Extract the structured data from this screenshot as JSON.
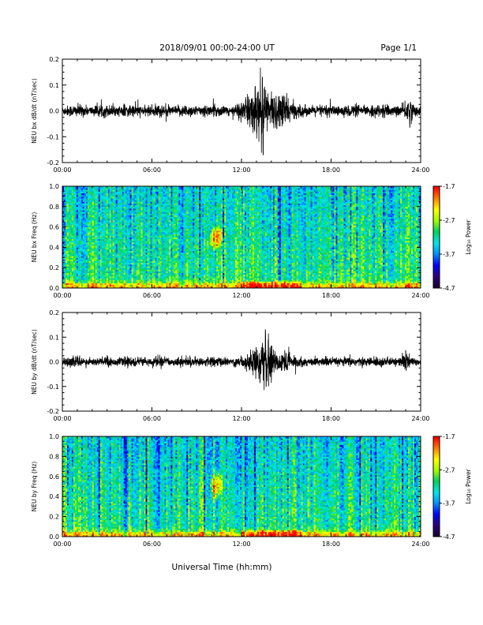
{
  "page": {
    "header": "2018/09/01  00:00-24:00 UT",
    "page_number": "Page 1/1",
    "xlabel": "Universal Time (hh:mm)"
  },
  "colors": {
    "trace": "#000000",
    "colormap": [
      "#1a0030",
      "#2a007a",
      "#0000ff",
      "#0090ff",
      "#00e8e8",
      "#00d060",
      "#a0ff00",
      "#ffff00",
      "#ff8000",
      "#ff0000"
    ]
  },
  "chart_data": [
    {
      "type": "line",
      "ylabel": "NEU bx dB/dt (nT/sec)",
      "x_ticks": [
        "00:00",
        "06:00",
        "12:00",
        "18:00",
        "24:00"
      ],
      "xlim": [
        0,
        24
      ],
      "ylim": [
        -0.2,
        0.2
      ],
      "y_ticks": [
        "-0.2",
        "-0.1",
        "0.0",
        "0.1",
        "0.2"
      ],
      "background_amplitude": 0.018,
      "bursts": [
        {
          "center": 13.3,
          "width": 1.0,
          "amp": 0.075
        },
        {
          "center": 14.8,
          "width": 0.45,
          "amp": 0.04
        },
        {
          "center": 23.2,
          "width": 0.2,
          "amp": 0.035
        }
      ],
      "extremes": {
        "max": 0.13,
        "min": -0.17,
        "at_hour": 13.4
      }
    },
    {
      "type": "heatmap",
      "ylabel": "NEU bx Freq (Hz)",
      "x_ticks": [
        "00:00",
        "06:00",
        "12:00",
        "18:00",
        "24:00"
      ],
      "xlim": [
        0,
        24
      ],
      "ylim": [
        0,
        1.0
      ],
      "y_ticks": [
        "0.0",
        "0.2",
        "0.4",
        "0.6",
        "0.8",
        "1.0"
      ],
      "colorbar": {
        "label": "Log₁₀ Power",
        "ticks": [
          "-1.7",
          "-2.7",
          "-3.7",
          "-4.7"
        ],
        "range": [
          -4.7,
          -1.7
        ]
      },
      "features": {
        "low_freq_band": [
          0.0,
          0.05
        ],
        "emission_hours": [
          9.8,
          10.8
        ],
        "emission_freq": [
          0.38,
          0.62
        ]
      }
    },
    {
      "type": "line",
      "ylabel": "NEU by dB/dt (nT/sec)",
      "x_ticks": [
        "00:00",
        "06:00",
        "12:00",
        "18:00",
        "24:00"
      ],
      "xlim": [
        0,
        24
      ],
      "ylim": [
        -0.2,
        0.2
      ],
      "y_ticks": [
        "-0.2",
        "-0.1",
        "0.0",
        "0.1",
        "0.2"
      ],
      "background_amplitude": 0.015,
      "bursts": [
        {
          "center": 13.5,
          "width": 0.9,
          "amp": 0.06
        },
        {
          "center": 15.0,
          "width": 0.35,
          "amp": 0.03
        },
        {
          "center": 23.0,
          "width": 0.2,
          "amp": 0.03
        }
      ],
      "extremes": {
        "max": 0.13,
        "min": -0.1,
        "at_hour": 13.6
      }
    },
    {
      "type": "heatmap",
      "ylabel": "NEU by Freq (Hz)",
      "x_ticks": [
        "00:00",
        "06:00",
        "12:00",
        "18:00",
        "24:00"
      ],
      "xlim": [
        0,
        24
      ],
      "ylim": [
        0,
        1.0
      ],
      "y_ticks": [
        "0.0",
        "0.2",
        "0.4",
        "0.6",
        "0.8",
        "1.0"
      ],
      "colorbar": {
        "label": "Log₁₀ Power",
        "ticks": [
          "-1.7",
          "-2.7",
          "-3.7",
          "-4.7"
        ],
        "range": [
          -4.7,
          -1.7
        ]
      },
      "features": {
        "low_freq_band": [
          0.0,
          0.05
        ],
        "emission_hours": [
          9.8,
          10.8
        ],
        "emission_freq": [
          0.36,
          0.66
        ]
      }
    }
  ]
}
